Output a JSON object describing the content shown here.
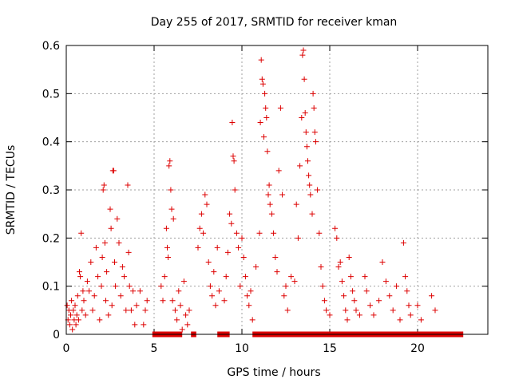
{
  "chart_data": {
    "type": "scatter",
    "title": "Day 255 of 2017, SRMTID for receiver kman",
    "xlabel": "GPS time / hours",
    "ylabel": "SRMTID / TECUs",
    "xlim": [
      0,
      24
    ],
    "ylim": [
      0,
      0.6
    ],
    "xticks": [
      0,
      5,
      10,
      15,
      20
    ],
    "yticks": [
      0,
      0.1,
      0.2,
      0.3,
      0.4,
      0.5,
      0.6
    ],
    "xtick_labels": [
      "0",
      "5",
      "10",
      "15",
      "20"
    ],
    "ytick_labels": [
      "0",
      "0.1",
      "0.2",
      "0.3",
      "0.4",
      "0.5",
      "0.6"
    ],
    "grid": true,
    "marker": "plus",
    "color": "#dd0000",
    "points": [
      [
        0.05,
        0.06
      ],
      [
        0.1,
        0.03
      ],
      [
        0.15,
        0.05
      ],
      [
        0.2,
        0.02
      ],
      [
        0.25,
        0.04
      ],
      [
        0.3,
        0.07
      ],
      [
        0.35,
        0.01
      ],
      [
        0.4,
        0.05
      ],
      [
        0.45,
        0.03
      ],
      [
        0.5,
        0.06
      ],
      [
        0.55,
        0.02
      ],
      [
        0.6,
        0.04
      ],
      [
        0.65,
        0.08
      ],
      [
        0.7,
        0.03
      ],
      [
        0.75,
        0.13
      ],
      [
        0.8,
        0.12
      ],
      [
        0.85,
        0.21
      ],
      [
        0.9,
        0.05
      ],
      [
        0.95,
        0.09
      ],
      [
        1.0,
        0.07
      ],
      [
        1.1,
        0.04
      ],
      [
        1.2,
        0.11
      ],
      [
        1.3,
        0.09
      ],
      [
        1.4,
        0.15
      ],
      [
        1.5,
        0.05
      ],
      [
        1.6,
        0.08
      ],
      [
        1.7,
        0.18
      ],
      [
        1.8,
        0.12
      ],
      [
        1.9,
        0.03
      ],
      [
        2.0,
        0.1
      ],
      [
        2.05,
        0.16
      ],
      [
        2.1,
        0.3
      ],
      [
        2.15,
        0.31
      ],
      [
        2.2,
        0.19
      ],
      [
        2.25,
        0.07
      ],
      [
        2.3,
        0.13
      ],
      [
        2.4,
        0.04
      ],
      [
        2.5,
        0.26
      ],
      [
        2.55,
        0.22
      ],
      [
        2.6,
        0.06
      ],
      [
        2.65,
        0.34
      ],
      [
        2.7,
        0.34
      ],
      [
        2.75,
        0.15
      ],
      [
        2.8,
        0.1
      ],
      [
        2.9,
        0.24
      ],
      [
        3.0,
        0.19
      ],
      [
        3.1,
        0.08
      ],
      [
        3.2,
        0.14
      ],
      [
        3.3,
        0.12
      ],
      [
        3.4,
        0.05
      ],
      [
        3.5,
        0.31
      ],
      [
        3.55,
        0.17
      ],
      [
        3.6,
        0.1
      ],
      [
        3.7,
        0.05
      ],
      [
        3.8,
        0.09
      ],
      [
        3.9,
        0.02
      ],
      [
        4.0,
        0.06
      ],
      [
        4.2,
        0.09
      ],
      [
        4.4,
        0.02
      ],
      [
        4.5,
        0.05
      ],
      [
        4.6,
        0.07
      ],
      [
        5.4,
        0.1
      ],
      [
        5.5,
        0.07
      ],
      [
        5.6,
        0.12
      ],
      [
        5.7,
        0.22
      ],
      [
        5.75,
        0.18
      ],
      [
        5.8,
        0.16
      ],
      [
        5.85,
        0.35
      ],
      [
        5.9,
        0.36
      ],
      [
        5.95,
        0.3
      ],
      [
        6.0,
        0.26
      ],
      [
        6.05,
        0.07
      ],
      [
        6.1,
        0.24
      ],
      [
        6.2,
        0.05
      ],
      [
        6.3,
        0.03
      ],
      [
        6.4,
        0.09
      ],
      [
        6.5,
        0.06
      ],
      [
        6.6,
        0.01
      ],
      [
        6.7,
        0.11
      ],
      [
        6.8,
        0.04
      ],
      [
        6.9,
        0.02
      ],
      [
        7.0,
        0.05
      ],
      [
        7.5,
        0.18
      ],
      [
        7.6,
        0.22
      ],
      [
        7.7,
        0.25
      ],
      [
        7.8,
        0.21
      ],
      [
        7.9,
        0.29
      ],
      [
        8.0,
        0.27
      ],
      [
        8.1,
        0.15
      ],
      [
        8.2,
        0.1
      ],
      [
        8.3,
        0.08
      ],
      [
        8.4,
        0.13
      ],
      [
        8.5,
        0.06
      ],
      [
        8.6,
        0.18
      ],
      [
        8.7,
        0.09
      ],
      [
        9.0,
        0.07
      ],
      [
        9.1,
        0.12
      ],
      [
        9.2,
        0.17
      ],
      [
        9.3,
        0.25
      ],
      [
        9.4,
        0.23
      ],
      [
        9.45,
        0.44
      ],
      [
        9.5,
        0.37
      ],
      [
        9.55,
        0.36
      ],
      [
        9.6,
        0.3
      ],
      [
        9.7,
        0.21
      ],
      [
        9.8,
        0.18
      ],
      [
        9.9,
        0.1
      ],
      [
        10.0,
        0.2
      ],
      [
        10.1,
        0.16
      ],
      [
        10.2,
        0.12
      ],
      [
        10.3,
        0.08
      ],
      [
        10.4,
        0.06
      ],
      [
        10.5,
        0.09
      ],
      [
        10.6,
        0.03
      ],
      [
        10.8,
        0.14
      ],
      [
        11.0,
        0.21
      ],
      [
        11.05,
        0.44
      ],
      [
        11.1,
        0.57
      ],
      [
        11.15,
        0.53
      ],
      [
        11.2,
        0.52
      ],
      [
        11.25,
        0.41
      ],
      [
        11.3,
        0.5
      ],
      [
        11.35,
        0.47
      ],
      [
        11.4,
        0.45
      ],
      [
        11.45,
        0.38
      ],
      [
        11.5,
        0.29
      ],
      [
        11.55,
        0.31
      ],
      [
        11.6,
        0.27
      ],
      [
        11.7,
        0.25
      ],
      [
        11.8,
        0.21
      ],
      [
        11.9,
        0.16
      ],
      [
        12.0,
        0.13
      ],
      [
        12.1,
        0.34
      ],
      [
        12.2,
        0.47
      ],
      [
        12.3,
        0.29
      ],
      [
        12.4,
        0.08
      ],
      [
        12.5,
        0.1
      ],
      [
        12.6,
        0.05
      ],
      [
        12.8,
        0.12
      ],
      [
        13.0,
        0.11
      ],
      [
        13.1,
        0.27
      ],
      [
        13.2,
        0.2
      ],
      [
        13.3,
        0.35
      ],
      [
        13.4,
        0.45
      ],
      [
        13.45,
        0.58
      ],
      [
        13.5,
        0.59
      ],
      [
        13.55,
        0.53
      ],
      [
        13.6,
        0.46
      ],
      [
        13.65,
        0.42
      ],
      [
        13.7,
        0.39
      ],
      [
        13.75,
        0.36
      ],
      [
        13.8,
        0.33
      ],
      [
        13.85,
        0.31
      ],
      [
        13.9,
        0.29
      ],
      [
        14.0,
        0.25
      ],
      [
        14.05,
        0.5
      ],
      [
        14.1,
        0.47
      ],
      [
        14.15,
        0.42
      ],
      [
        14.2,
        0.4
      ],
      [
        14.3,
        0.3
      ],
      [
        14.4,
        0.21
      ],
      [
        14.5,
        0.14
      ],
      [
        14.6,
        0.1
      ],
      [
        14.7,
        0.07
      ],
      [
        14.8,
        0.05
      ],
      [
        15.0,
        0.04
      ],
      [
        15.3,
        0.22
      ],
      [
        15.4,
        0.2
      ],
      [
        15.5,
        0.14
      ],
      [
        15.6,
        0.15
      ],
      [
        15.7,
        0.11
      ],
      [
        15.8,
        0.08
      ],
      [
        15.9,
        0.05
      ],
      [
        16.0,
        0.03
      ],
      [
        16.1,
        0.16
      ],
      [
        16.2,
        0.12
      ],
      [
        16.3,
        0.09
      ],
      [
        16.4,
        0.07
      ],
      [
        16.5,
        0.05
      ],
      [
        16.7,
        0.04
      ],
      [
        17.0,
        0.12
      ],
      [
        17.1,
        0.09
      ],
      [
        17.3,
        0.06
      ],
      [
        17.5,
        0.04
      ],
      [
        17.8,
        0.07
      ],
      [
        18.0,
        0.15
      ],
      [
        18.2,
        0.11
      ],
      [
        18.4,
        0.08
      ],
      [
        18.6,
        0.05
      ],
      [
        18.8,
        0.1
      ],
      [
        19.0,
        0.03
      ],
      [
        19.2,
        0.19
      ],
      [
        19.3,
        0.12
      ],
      [
        19.4,
        0.09
      ],
      [
        19.5,
        0.06
      ],
      [
        19.6,
        0.04
      ],
      [
        20.0,
        0.06
      ],
      [
        20.2,
        0.03
      ],
      [
        20.8,
        0.08
      ],
      [
        21.0,
        0.05
      ]
    ],
    "zero_band": [
      [
        4.9,
        6.6
      ],
      [
        7.1,
        7.4
      ],
      [
        8.6,
        9.3
      ],
      [
        10.6,
        22.6
      ]
    ]
  }
}
